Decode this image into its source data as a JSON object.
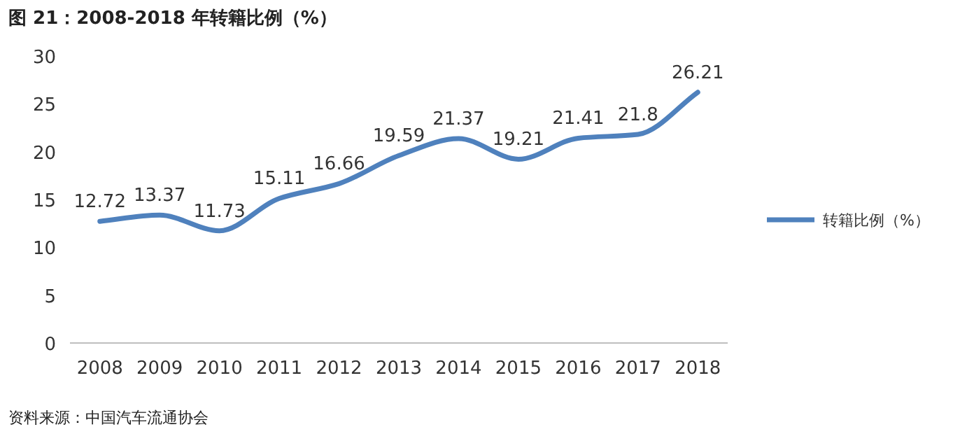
{
  "chart_data": {
    "type": "line",
    "title": "图 21：2008-2018 年转籍比例（%）",
    "categories": [
      "2008",
      "2009",
      "2010",
      "2011",
      "2012",
      "2013",
      "2014",
      "2015",
      "2016",
      "2017",
      "2018"
    ],
    "series": [
      {
        "name": "转籍比例（%）",
        "color": "#4f81bd",
        "values": [
          12.72,
          13.37,
          11.73,
          15.11,
          16.66,
          19.59,
          21.37,
          19.21,
          21.41,
          21.8,
          26.21
        ]
      }
    ],
    "ylim": [
      0,
      30
    ],
    "yticks": [
      0,
      5,
      10,
      15,
      20,
      25,
      30
    ],
    "data_labels": true,
    "legend": "right",
    "grid": false,
    "annotations": [
      "资料来源：中国汽车流通协会"
    ]
  }
}
